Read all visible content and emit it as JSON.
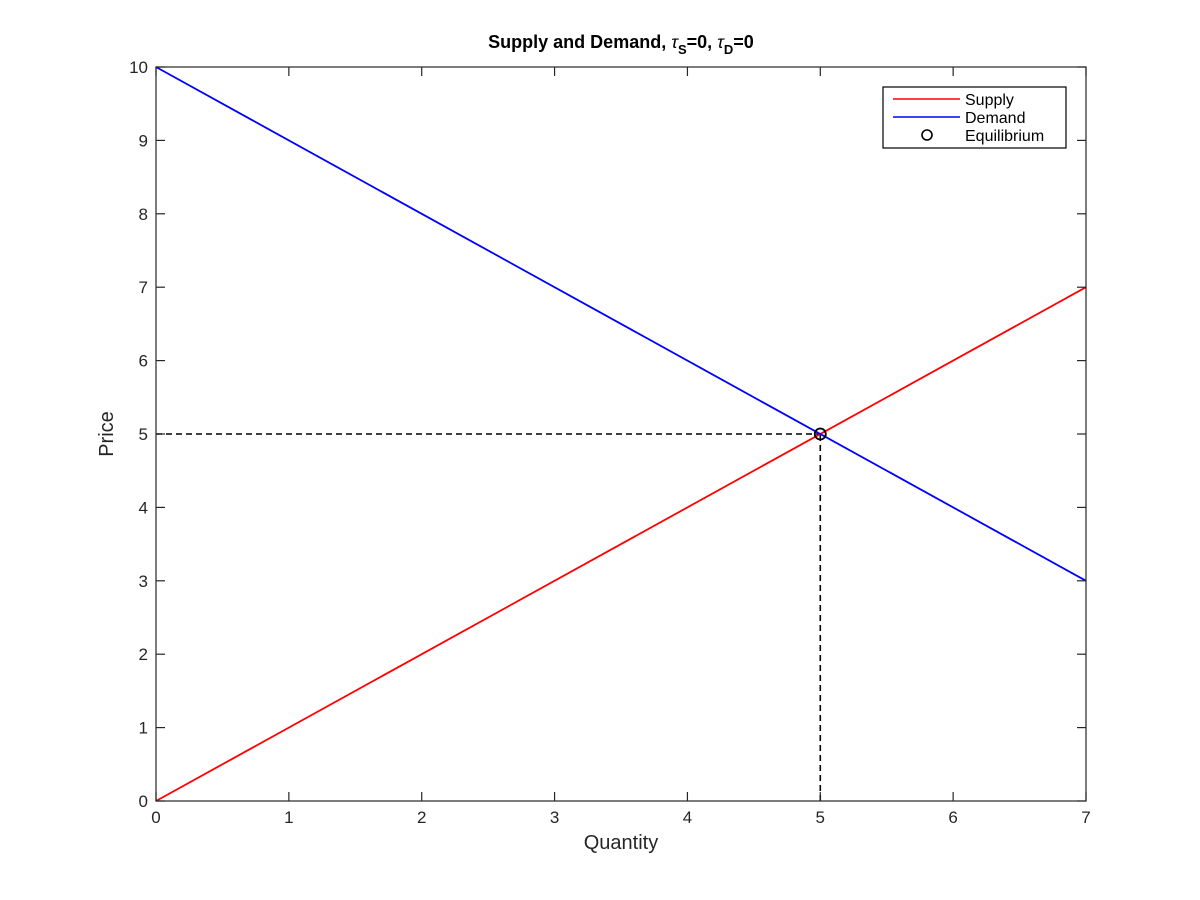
{
  "chart_data": {
    "type": "line",
    "title": {
      "main": "Supply and Demand, ",
      "tau_s_symbol": "τ",
      "tau_s_sub": "S",
      "tau_s_value": "=0",
      "separator": ", ",
      "tau_d_symbol": "τ",
      "tau_d_sub": "D",
      "tau_d_value": "=0"
    },
    "xlabel": "Quantity",
    "ylabel": "Price",
    "xlim": [
      0,
      7
    ],
    "ylim": [
      0,
      10
    ],
    "xticks": [
      0,
      1,
      2,
      3,
      4,
      5,
      6,
      7
    ],
    "yticks": [
      0,
      1,
      2,
      3,
      4,
      5,
      6,
      7,
      8,
      9,
      10
    ],
    "grid": false,
    "legend_position": "top-right",
    "series": [
      {
        "name": "Supply",
        "color": "#ff0000",
        "x": [
          0,
          7
        ],
        "y": [
          0,
          7
        ]
      },
      {
        "name": "Demand",
        "color": "#0000ff",
        "x": [
          0,
          7
        ],
        "y": [
          10,
          3
        ]
      }
    ],
    "equilibrium": {
      "name": "Equilibrium",
      "x": 5,
      "y": 5,
      "marker": "circle",
      "color": "#000000"
    },
    "reference_lines": [
      {
        "type": "horizontal",
        "x": [
          0,
          5
        ],
        "y": [
          5,
          5
        ],
        "style": "dashed",
        "color": "#000000"
      },
      {
        "type": "vertical",
        "x": [
          5,
          5
        ],
        "y": [
          0,
          5
        ],
        "style": "dashed",
        "color": "#000000"
      }
    ]
  }
}
